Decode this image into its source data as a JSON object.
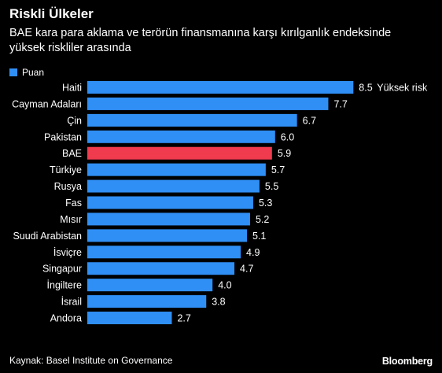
{
  "header": {
    "title": "Riskli Ülkeler",
    "subtitle": "BAE kara para aklama ve terörün finansmanına karşı kırılganlık endeksinde yüksek riskliler arasında"
  },
  "legend": {
    "label": "Puan"
  },
  "footer": {
    "source": "Kaynak: Basel Institute on Governance",
    "logo": "Bloomberg"
  },
  "colors": {
    "bar": "#2f8ff5",
    "highlight": "#f03a4d",
    "background": "#000000",
    "text": "#ffffff"
  },
  "chart_data": {
    "type": "bar",
    "orientation": "horizontal",
    "categories": [
      "Haiti",
      "Cayman Adaları",
      "Çin",
      "Pakistan",
      "BAE",
      "Türkiye",
      "Rusya",
      "Fas",
      "Mısır",
      "Suudi Arabistan",
      "İsviçre",
      "Singapur",
      "İngiltere",
      "İsrail",
      "Andora"
    ],
    "series": [
      {
        "name": "Puan",
        "values": [
          8.5,
          7.7,
          6.7,
          6.0,
          5.9,
          5.7,
          5.5,
          5.3,
          5.2,
          5.1,
          4.9,
          4.7,
          4.0,
          3.8,
          2.7
        ]
      }
    ],
    "value_labels": [
      "8.5",
      "7.7",
      "6.7",
      "6.0",
      "5.9",
      "5.7",
      "5.5",
      "5.3",
      "5.2",
      "5.1",
      "4.9",
      "4.7",
      "4.0",
      "3.8",
      "2.7"
    ],
    "highlight_category": "BAE",
    "annotation": {
      "category": "Haiti",
      "text": "Yüksek risk"
    },
    "xlim": [
      0,
      8.5
    ],
    "grid": false,
    "legend_position": "top-left"
  }
}
